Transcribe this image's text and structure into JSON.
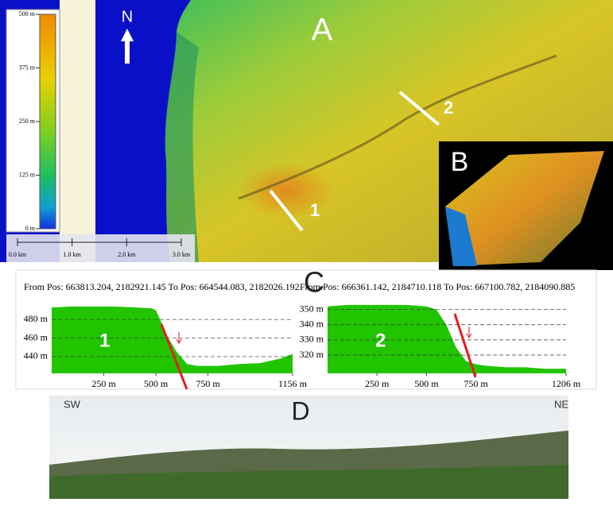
{
  "figure": {
    "panel_labels": {
      "a": "A",
      "b": "B",
      "c": "C",
      "d": "D"
    }
  },
  "map": {
    "north": "N",
    "profile_lines": [
      "1",
      "2"
    ],
    "legend": {
      "lim": [
        0,
        500
      ],
      "ticks": [
        {
          "value": 0,
          "label": "0 m"
        },
        {
          "value": 125,
          "label": "125 m"
        },
        {
          "value": 250,
          "label": "250 m"
        },
        {
          "value": 375,
          "label": "375 m"
        },
        {
          "value": 500,
          "label": "500 m"
        }
      ]
    },
    "scale_bar": {
      "ticks": [
        "0.0 km",
        "1.0 km",
        "2.0 km",
        "3.0 km"
      ]
    }
  },
  "chart_data": [
    {
      "type": "area",
      "title": "From Pos: 663813.204, 2182921.145  To Pos: 664544.083, 2182026.192",
      "label": "1",
      "color": "#22c400",
      "x": [
        0,
        100,
        200,
        300,
        400,
        480,
        500,
        530,
        560,
        600,
        650,
        700,
        800,
        900,
        1000,
        1100,
        1156
      ],
      "values": [
        493,
        494,
        494,
        494,
        493,
        492,
        490,
        475,
        460,
        445,
        432,
        430,
        430,
        432,
        433,
        438,
        443
      ],
      "xlim": [
        0,
        1156
      ],
      "ylim": [
        422,
        499
      ],
      "xticks": [
        {
          "value": 250,
          "label": "250 m"
        },
        {
          "value": 500,
          "label": "500 m"
        },
        {
          "value": 750,
          "label": "750 m"
        },
        {
          "value": 1156,
          "label": "1156 m"
        }
      ],
      "yticks": [
        {
          "value": 440,
          "label": "440 m"
        },
        {
          "value": 460,
          "label": "460 m"
        },
        {
          "value": 480,
          "label": "480 m"
        }
      ],
      "grid": true
    },
    {
      "type": "area",
      "title": "From Pos: 666361.142, 2184710.118  To Pos: 667100.782, 2184090.885",
      "label": "2",
      "color": "#22c400",
      "x": [
        0,
        100,
        200,
        300,
        400,
        500,
        550,
        600,
        650,
        700,
        750,
        800,
        900,
        1000,
        1100,
        1206
      ],
      "values": [
        352,
        353,
        353,
        353,
        353,
        352,
        350,
        340,
        325,
        316,
        314,
        313,
        312,
        312,
        311,
        311
      ],
      "xlim": [
        0,
        1206
      ],
      "ylim": [
        308,
        355
      ],
      "xticks": [
        {
          "value": 250,
          "label": "250 m"
        },
        {
          "value": 500,
          "label": "500 m"
        },
        {
          "value": 750,
          "label": "750 m"
        },
        {
          "value": 1206,
          "label": "1206 m"
        }
      ],
      "yticks": [
        {
          "value": 320,
          "label": "320 m"
        },
        {
          "value": 330,
          "label": "330 m"
        },
        {
          "value": 340,
          "label": "340 m"
        },
        {
          "value": 350,
          "label": "350 m"
        }
      ],
      "grid": true
    }
  ],
  "photo": {
    "left": "SW",
    "right": "NE"
  }
}
